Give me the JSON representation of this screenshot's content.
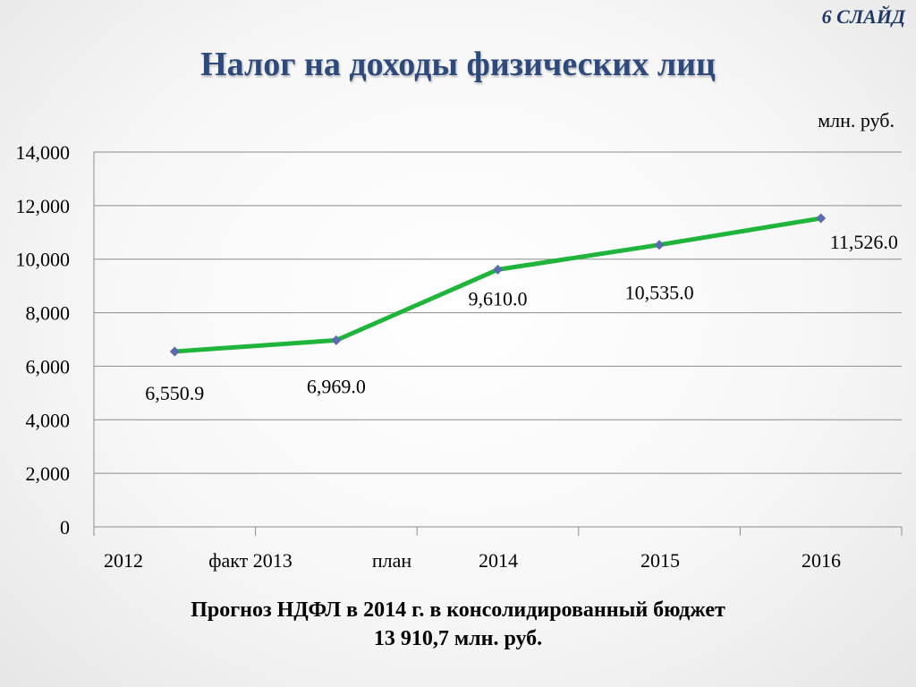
{
  "slide_label": "6 СЛАЙД",
  "title": "Налог на доходы физических лиц",
  "unit": "млн. руб.",
  "footer": {
    "line1": "Прогноз НДФЛ в 2014 г. в консолидированный бюджет",
    "line2": "13 910,7 млн. руб."
  },
  "colors": {
    "line": "#1fb53a",
    "marker": "#5b6bb0",
    "title": "#2e4a7d",
    "grid": "#8c8c8c"
  },
  "chart_data": {
    "type": "line",
    "categories": [
      "2012",
      "факт 2013",
      "план",
      "2014",
      "2015",
      "2016"
    ],
    "points": [
      {
        "x_index": 0.5,
        "value": 6550.9,
        "label": "6,550.9",
        "label_pos": "below"
      },
      {
        "x_index": 1.5,
        "value": 6969.0,
        "label": "6,969.0",
        "label_pos": "below"
      },
      {
        "x_index": 2.5,
        "value": 9610.0,
        "label": "9,610.0",
        "label_pos": "below"
      },
      {
        "x_index": 3.5,
        "value": 10535.0,
        "label": "10,535.0",
        "label_pos": "below"
      },
      {
        "x_index": 4.5,
        "value": 11526.0,
        "label": "11,526.0",
        "label_pos": "below-right"
      }
    ],
    "yticks": [
      "0",
      "2,000",
      "4,000",
      "6,000",
      "8,000",
      "10,000",
      "12,000",
      "14,000"
    ],
    "ylim": [
      0,
      14000
    ],
    "grid": true,
    "legend": false
  }
}
